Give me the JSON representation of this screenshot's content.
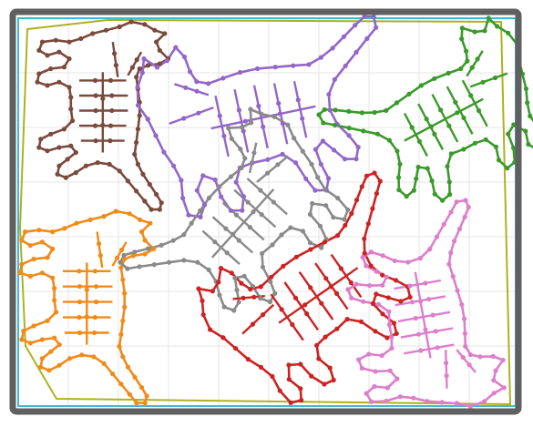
{
  "colors": {
    "frame": "#606060",
    "grid": "#e6e6e6",
    "container": "#40b8d8",
    "hull": "#b0b020",
    "background": "#ffffff"
  },
  "cats": [
    {
      "id": "brown",
      "color": "#7a4a3c"
    },
    {
      "id": "purple",
      "color": "#9466c9"
    },
    {
      "id": "green",
      "color": "#3a9a2a"
    },
    {
      "id": "orange",
      "color": "#f28a18"
    },
    {
      "id": "gray",
      "color": "#8a8a8a"
    },
    {
      "id": "red",
      "color": "#cc2222"
    },
    {
      "id": "pink",
      "color": "#dd7ecb"
    }
  ]
}
